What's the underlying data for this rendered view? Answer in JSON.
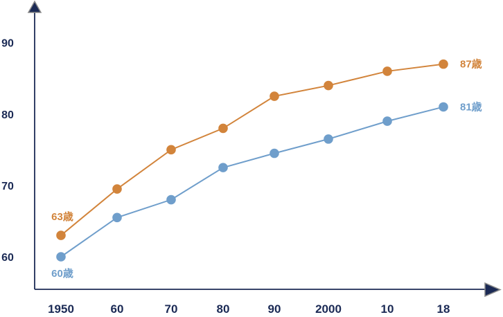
{
  "chart_data": {
    "type": "line",
    "categories": [
      "1950",
      "60",
      "70",
      "80",
      "90",
      "2000",
      "10",
      "18"
    ],
    "series": [
      {
        "name": "upper-series-orange",
        "color": "#d2843b",
        "values": [
          63,
          69.5,
          75,
          78,
          82.5,
          84,
          86,
          87
        ],
        "first_point_label": "63歳",
        "first_label_pos": "above",
        "last_point_label": "87歳",
        "last_label_pos": "right"
      },
      {
        "name": "lower-series-blue",
        "color": "#6f9ecb",
        "values": [
          60,
          65.5,
          68,
          72.5,
          74.5,
          76.5,
          79,
          81
        ],
        "first_point_label": "60歳",
        "first_label_pos": "below",
        "last_point_label": "81歳",
        "last_label_pos": "right"
      }
    ],
    "title": "",
    "xlabel": "",
    "ylabel": "",
    "y_ticks": [
      90,
      80,
      70,
      60
    ],
    "ylim": [
      57,
      93
    ],
    "grid": false,
    "legend": false,
    "axis_color": "#1b2a55",
    "arrow_outline_color": "#8a8a8a"
  }
}
